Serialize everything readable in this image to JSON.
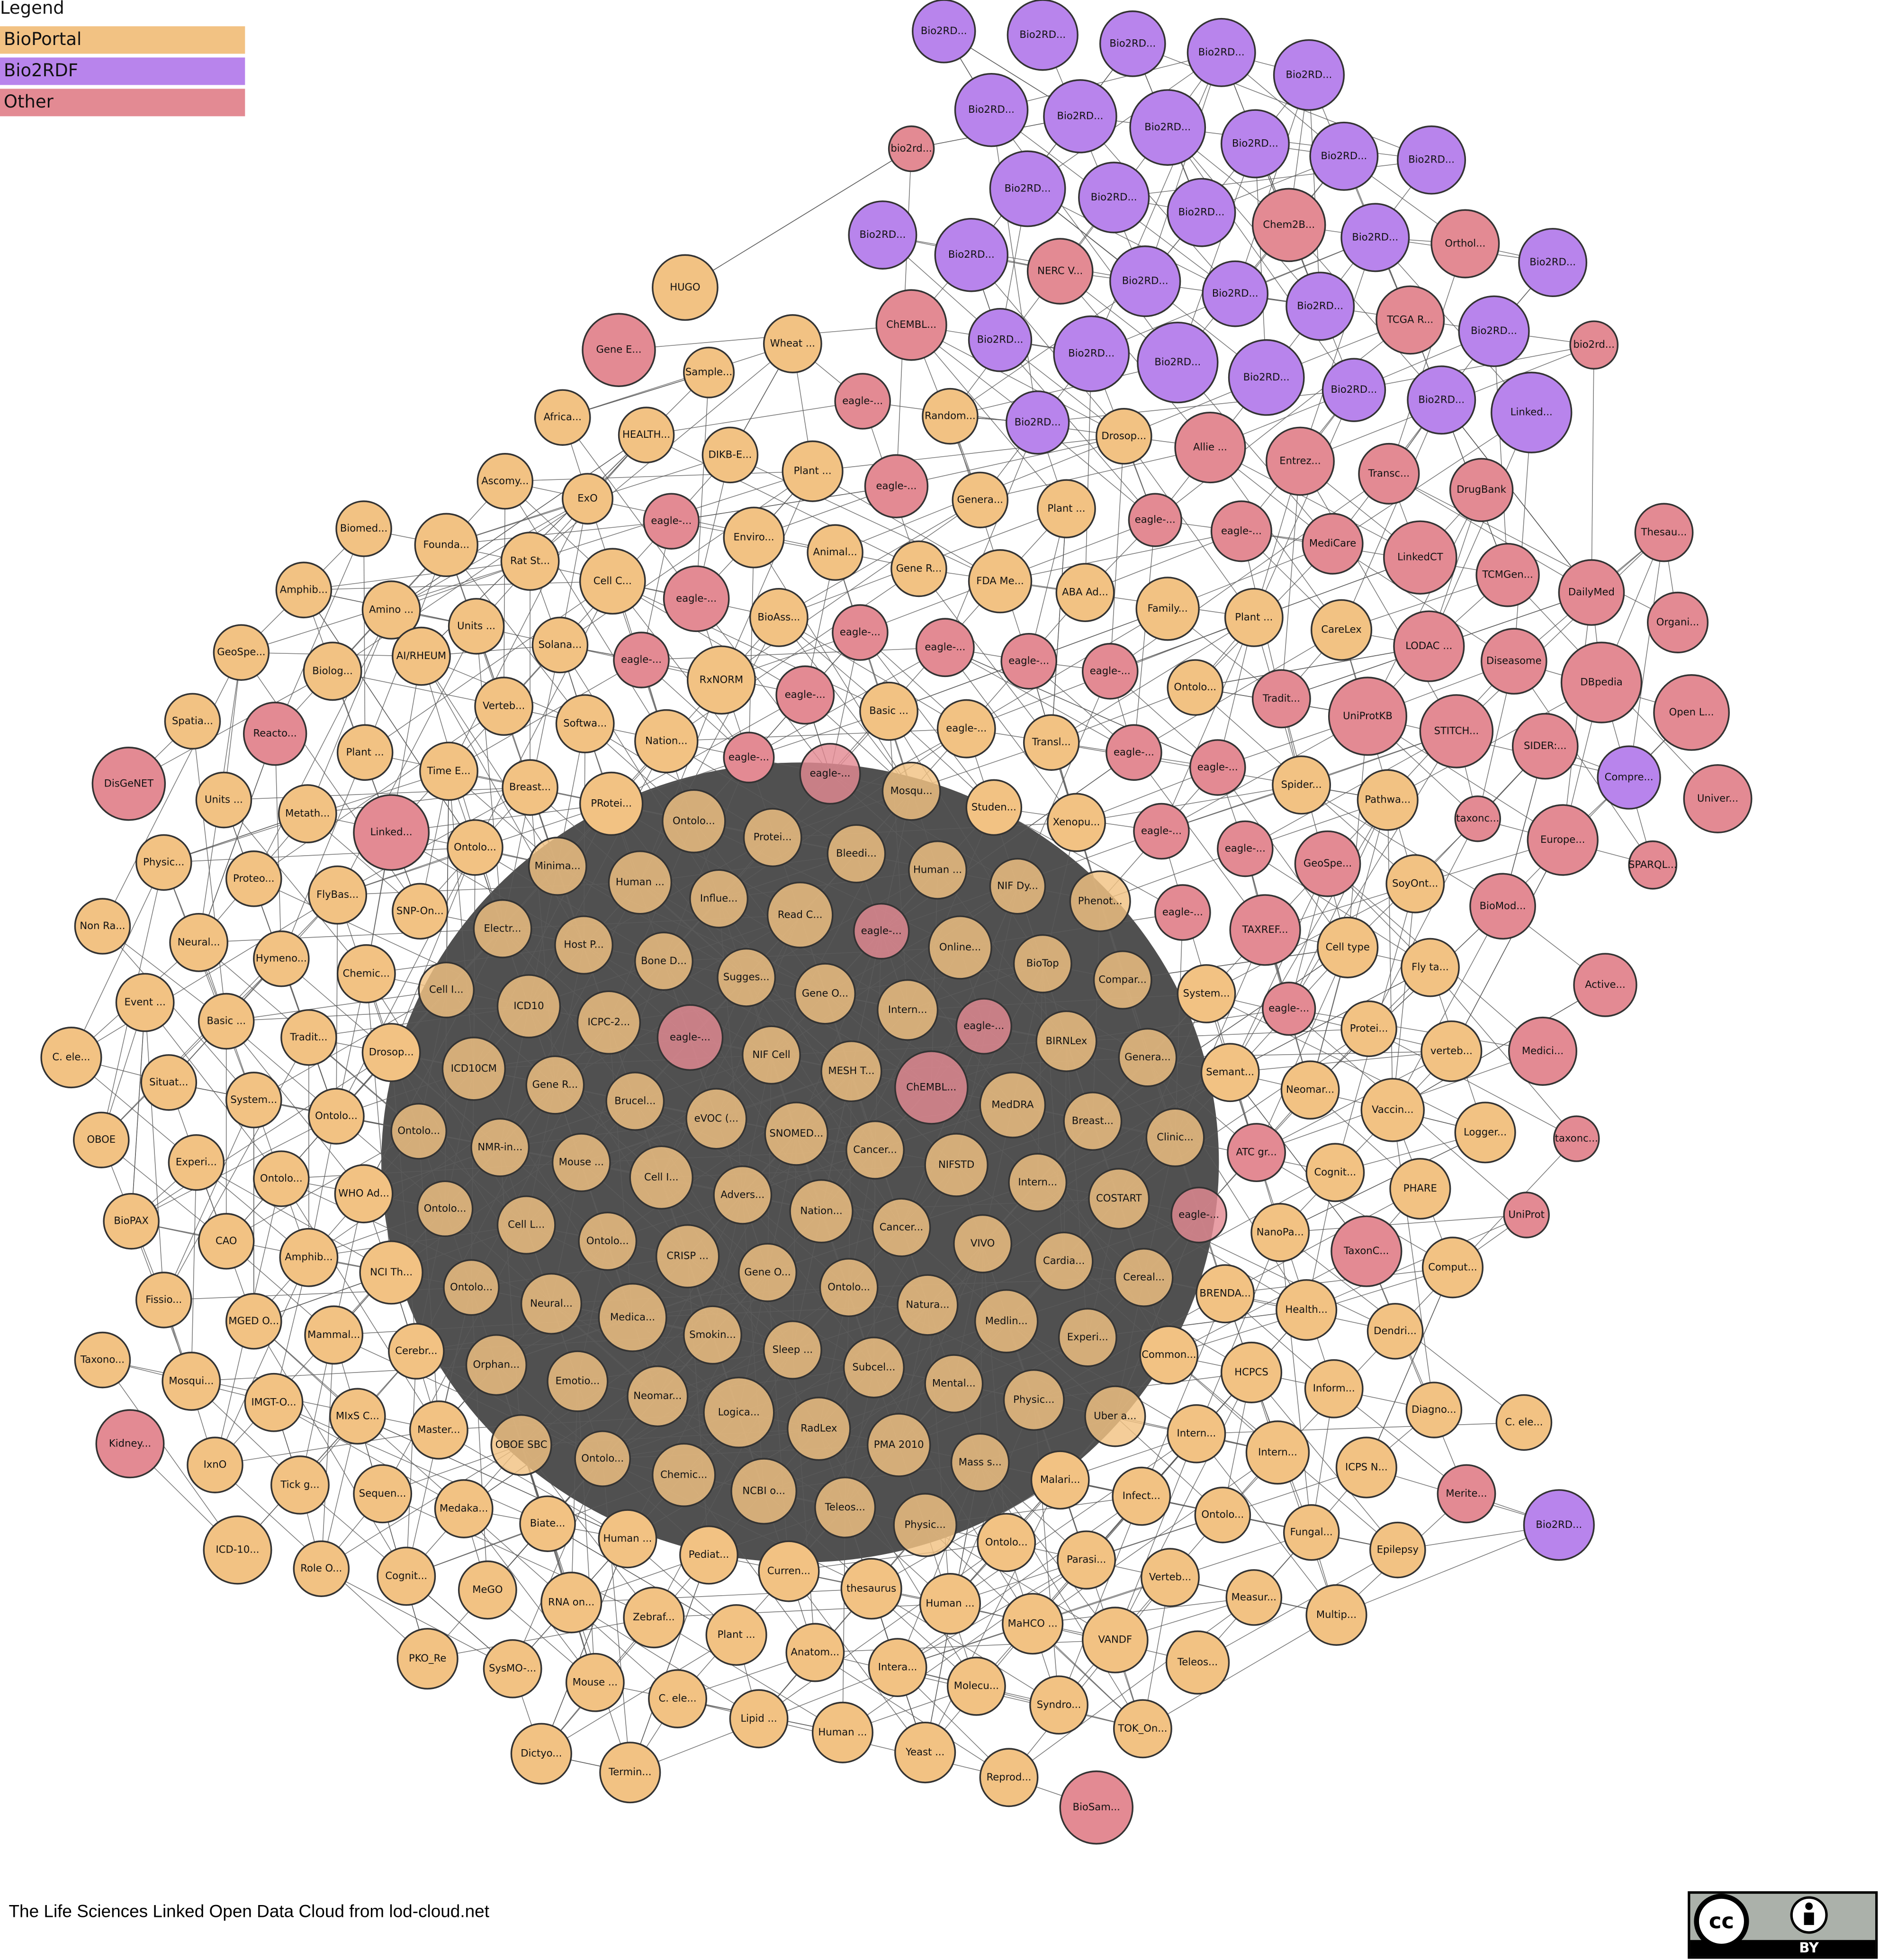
{
  "legend": {
    "title": "Legend"
  },
  "groups": [
    {
      "label": "BioPortal",
      "color": "#f2c283",
      "nodes": [
        "HUGO",
        "Wheat ...",
        "Sample...",
        "Africa...",
        "HEALTH...",
        "Random...",
        "Drosop...",
        "DIKB-E...",
        "Plant ...",
        "Ascomy...",
        "ExO",
        "Genera...",
        "Plant ...",
        "Biomed...",
        "Founda...",
        "Rat St...",
        "Enviro...",
        "Animal...",
        "Gene R...",
        "Cell C...",
        "ABA Ad...",
        "FDA Me...",
        "Family...",
        "Amphib...",
        "Amino ...",
        "Units ...",
        "Solana...",
        "BioAss...",
        "Plant ...",
        "CareLex",
        "GeoSpe...",
        "Biolog...",
        "AI/RHEUM",
        "Verteb...",
        "RxNORM",
        "Ontolo...",
        "Softwa...",
        "Basic ...",
        "eagle-...",
        "Spatia...",
        "Nation...",
        "Transl...",
        "Plant ...",
        "Time E...",
        "Breast...",
        "Spider...",
        "Units ...",
        "Metath...",
        "PRotei...",
        "Ontolo...",
        "Mosqu...",
        "Studen...",
        "Xenopu...",
        "Pathwa...",
        "Protei...",
        "Ontolo...",
        "Physic...",
        "Proteo...",
        "FlyBas...",
        "Minima...",
        "Bleedi...",
        "Human ...",
        "NIF Dy...",
        "Human ...",
        "SNP-On...",
        "Phenot...",
        "SoyOnt...",
        "Non Ra...",
        "Influe...",
        "Read C...",
        "Electr...",
        "Neural...",
        "Hymeno...",
        "Host P...",
        "Online...",
        "Cell type",
        "Chemic...",
        "Bone D...",
        "BioTop",
        "Fly ta...",
        "Sugges...",
        "Compar...",
        "System...",
        "Event ...",
        "Cell I...",
        "ICD10",
        "Gene O...",
        "Intern...",
        "Basic ...",
        "ICPC-2...",
        "Protei...",
        "Tradit...",
        "BIRNLex",
        "verteb...",
        "C. ele...",
        "NIF Cell",
        "Drosop...",
        "MESH T...",
        "Genera...",
        "Semant...",
        "Situat...",
        "ICD10CM",
        "Gene R...",
        "Neomar...",
        "Brucel...",
        "System...",
        "MedDRA",
        "Vaccin...",
        "eVOC (...",
        "SNOMED...",
        "Ontolo...",
        "Ontolo...",
        "Breast...",
        "OBOE",
        "Logger...",
        "Cancer...",
        "NMR-in...",
        "Experi...",
        "Clinic...",
        "NIFSTD",
        "Mouse ...",
        "Ontolo...",
        "Cognit...",
        "Cell I...",
        "Intern...",
        "WHO Ad...",
        "PHARE",
        "Advers...",
        "COSTART",
        "Nation...",
        "BioPAX",
        "Ontolo...",
        "Cell L...",
        "Cancer...",
        "NanoPa...",
        "CAO",
        "Ontolo...",
        "VIVO",
        "Amphib...",
        "CRISP ...",
        "Cardia...",
        "Comput...",
        "NCI Th...",
        "Gene O...",
        "Cereal...",
        "Ontolo...",
        "Ontolo...",
        "BRENDA...",
        "Fissio...",
        "Neural...",
        "Natura...",
        "Health...",
        "MGED O...",
        "Medica...",
        "Medlin...",
        "Dendri...",
        "Mammal...",
        "Smokin...",
        "Sleep ...",
        "Experi...",
        "Cerebr...",
        "Common...",
        "Orphan...",
        "Subcel...",
        "HCPCS",
        "Taxono...",
        "Emotio...",
        "Mental...",
        "Mosqui...",
        "Inform...",
        "Neomar...",
        "Physic...",
        "Logica...",
        "RadLex",
        "IMGT-O...",
        "Uber a...",
        "Diagno...",
        "Master...",
        "MIxS C...",
        "C. ele...",
        "OBOE SBC",
        "PMA 2010",
        "Intern...",
        "IxnO",
        "Ontolo...",
        "Mass s...",
        "Intern...",
        "ICPS N...",
        "Chemic...",
        "Tick g...",
        "Malari...",
        "Sequen...",
        "NCBI o...",
        "Infect...",
        "Medaka...",
        "Teleos...",
        "Ontolo...",
        "Biate...",
        "Physic...",
        "Fungal...",
        "ICD-10...",
        "Human ...",
        "Ontolo...",
        "Epilepsy",
        "Role O...",
        "Pediat...",
        "Parasi...",
        "Cognit...",
        "Curren...",
        "Verteb...",
        "MeGO",
        "thesaurus",
        "Human ...",
        "Measur...",
        "RNA on...",
        "Zebraf...",
        "MaHCO ...",
        "Multip...",
        "Plant ...",
        "VANDF",
        "PKO_Re",
        "SysMO-...",
        "Anatom...",
        "Intera...",
        "Teleos...",
        "Molecu...",
        "Mouse ...",
        "C. ele...",
        "Syndro...",
        "Lipid ...",
        "Human ...",
        "TOK_On...",
        "Dictyo...",
        "Yeast ...",
        "Termin...",
        "Reprod..."
      ]
    },
    {
      "label": "Bio2RDF",
      "color": "#b884ec",
      "nodes": [
        "Bio2RD...",
        "Bio2RD...",
        "Bio2RD...",
        "Bio2RD...",
        "Bio2RD...",
        "Bio2RD...",
        "Bio2RD...",
        "Bio2RD...",
        "Bio2RD...",
        "Bio2RD...",
        "Bio2RD...",
        "Bio2RD...",
        "Bio2RD...",
        "Bio2RD...",
        "Bio2RD...",
        "Bio2RD...",
        "Bio2RD...",
        "Bio2RD...",
        "Bio2RD...",
        "Bio2RD...",
        "Bio2RD...",
        "Bio2RD...",
        "Bio2RD...",
        "Bio2RD...",
        "Bio2RD...",
        "Bio2RD...",
        "Bio2RD...",
        "Bio2RD...",
        "Bio2RD...",
        "Linked...",
        "Compre...",
        "Bio2RD..."
      ]
    },
    {
      "label": "Other",
      "color": "#e38a93",
      "nodes": [
        "bio2rd...",
        "Chem2B...",
        "NERC V...",
        "Orthol...",
        "ChEMBL...",
        "TCGA R...",
        "bio2rd...",
        "Gene E...",
        "eagle-...",
        "Allie ...",
        "Entrez...",
        "Transc...",
        "DrugBank",
        "eagle-...",
        "eagle-...",
        "eagle-...",
        "eagle-...",
        "MediCare",
        "LinkedCT",
        "Thesau...",
        "TCMGen...",
        "DailyMed",
        "eagle-...",
        "eagle-...",
        "eagle-...",
        "eagle-...",
        "eagle-...",
        "eagle-...",
        "Organi...",
        "LODAC ...",
        "Diseasome",
        "DBpedia",
        "eagle-...",
        "Tradit...",
        "UniProtKB",
        "STITCH...",
        "SIDER:...",
        "Open L...",
        "Reacto...",
        "eagle-...",
        "eagle-...",
        "eagle-...",
        "eagle-...",
        "DisGeNET",
        "Univer...",
        "Linked...",
        "taxonc...",
        "eagle-...",
        "eagle-...",
        "GeoSpe...",
        "Europe...",
        "SPARQL...",
        "BioMod...",
        "eagle-...",
        "TAXREF...",
        "eagle-...",
        "Active...",
        "eagle-...",
        "eagle-...",
        "eagle-...",
        "Medici...",
        "ChEMBL...",
        "ATC gr...",
        "taxonc...",
        "eagle-...",
        "UniProt",
        "TaxonC...",
        "Kidney...",
        "Merite...",
        "BioSam..."
      ]
    }
  ],
  "footer": "The Life Sciences Linked Open Data Cloud from lod-cloud.net",
  "license": "BY"
}
